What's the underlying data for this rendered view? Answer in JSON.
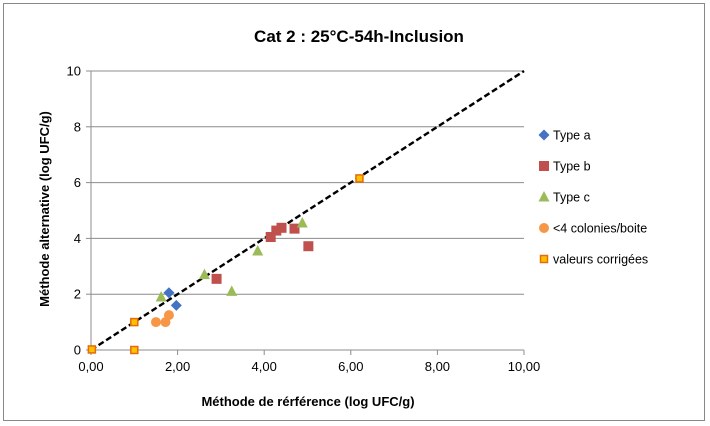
{
  "chart_data": {
    "type": "scatter",
    "title": "Cat 2 : 25°C-54h-Inclusion",
    "xlabel": "Méthode de rérférence (log UFC/g)",
    "ylabel": "Méthode alternative (log UFC/g)",
    "xlim": [
      0,
      10
    ],
    "ylim": [
      0,
      10
    ],
    "x_ticks": [
      "0,00",
      "2,00",
      "4,00",
      "6,00",
      "8,00",
      "10,00"
    ],
    "y_ticks": [
      "0",
      "2",
      "4",
      "6",
      "8",
      "10"
    ],
    "grid": "horizontal",
    "legend_position": "right",
    "reference_line": {
      "style": "dashed",
      "color": "#000000",
      "from": [
        0,
        0
      ],
      "to": [
        10,
        10
      ]
    },
    "series": [
      {
        "name": "Type a",
        "marker": "diamond",
        "color": "#4472C4",
        "points": [
          [
            1.8,
            2.05
          ],
          [
            1.97,
            1.6
          ]
        ]
      },
      {
        "name": "Type b",
        "marker": "square",
        "color": "#C0504D",
        "points": [
          [
            2.9,
            2.55
          ],
          [
            4.15,
            4.05
          ],
          [
            4.28,
            4.28
          ],
          [
            4.4,
            4.38
          ],
          [
            4.7,
            4.35
          ],
          [
            5.02,
            3.72
          ]
        ]
      },
      {
        "name": "Type c",
        "marker": "triangle",
        "color": "#9BBB59",
        "points": [
          [
            1.62,
            1.9
          ],
          [
            2.62,
            2.7
          ],
          [
            3.25,
            2.1
          ],
          [
            3.85,
            3.55
          ],
          [
            4.88,
            4.55
          ]
        ]
      },
      {
        "name": "<4 colonies/boite",
        "marker": "circle",
        "color": "#F79646",
        "points": [
          [
            1.5,
            1.0
          ],
          [
            1.72,
            1.0
          ],
          [
            1.8,
            1.25
          ]
        ]
      },
      {
        "name": "valeurs corrigées",
        "marker": "square-small",
        "color": "#FFC000",
        "stroke": "#E46C0A",
        "points": [
          [
            0.02,
            0.02
          ],
          [
            1.0,
            1.0
          ],
          [
            1.0,
            0.0
          ],
          [
            6.2,
            6.15
          ]
        ]
      }
    ]
  }
}
